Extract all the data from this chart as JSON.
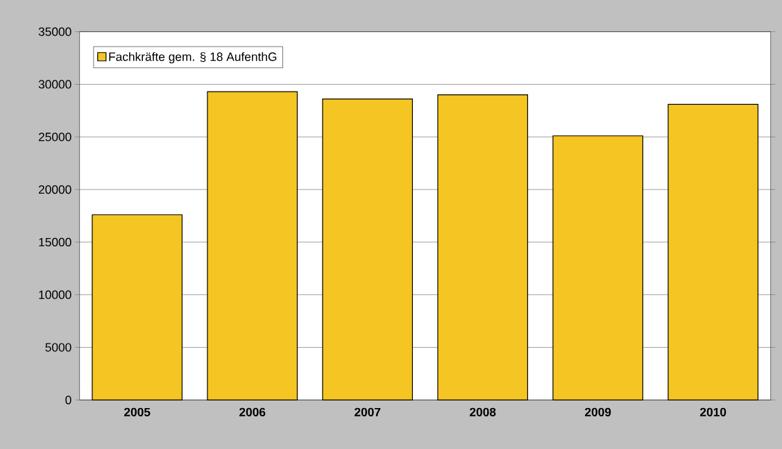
{
  "chart_data": {
    "type": "bar",
    "categories": [
      "2005",
      "2006",
      "2007",
      "2008",
      "2009",
      "2010"
    ],
    "series": [
      {
        "name": "Fachkräfte gem. § 18 AufenthG",
        "color": "#f5c623",
        "values": [
          17600,
          29300,
          28600,
          29000,
          25100,
          28100
        ]
      }
    ],
    "ylim": [
      0,
      35000
    ],
    "yticks": [
      0,
      5000,
      10000,
      15000,
      20000,
      25000,
      30000,
      35000
    ],
    "grid": "y",
    "legend": "top left"
  }
}
